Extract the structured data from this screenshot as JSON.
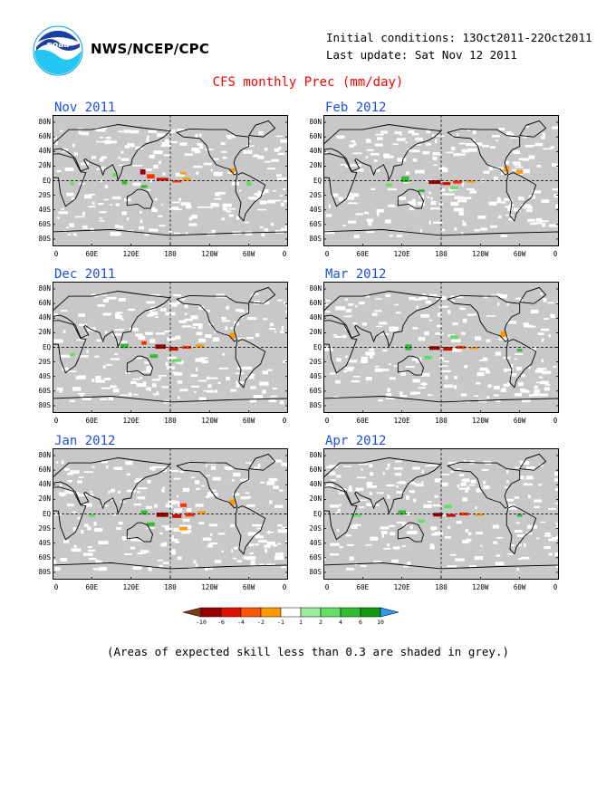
{
  "header": {
    "agency": "NWS/NCEP/CPC",
    "initial_conditions": "Initial conditions: 13Oct2011-22Oct2011",
    "last_update": "Last update: Sat Nov 12 2011",
    "main_title": "CFS monthly Prec (mm/day)",
    "logo_text": "noaa"
  },
  "panels": [
    {
      "title": "Nov 2011",
      "anomalies": [
        {
          "lon": 138,
          "lat": 12,
          "w": 8,
          "h": 7,
          "c": "#990000"
        },
        {
          "lon": 150,
          "lat": 6,
          "w": 12,
          "h": 6,
          "c": "#ff3300"
        },
        {
          "lon": 168,
          "lat": 2,
          "w": 18,
          "h": 4,
          "c": "#cc1100"
        },
        {
          "lon": 190,
          "lat": -1,
          "w": 14,
          "h": 3,
          "c": "#ff3300"
        },
        {
          "lon": 205,
          "lat": 2,
          "w": 12,
          "h": 4,
          "c": "#ff9900"
        },
        {
          "lon": 275,
          "lat": 14,
          "w": 8,
          "h": 6,
          "c": "#ff9900"
        },
        {
          "lon": 200,
          "lat": 10,
          "w": 10,
          "h": 3,
          "c": "#ff9900"
        },
        {
          "lon": 110,
          "lat": -2,
          "w": 8,
          "h": 6,
          "c": "#33bb33"
        },
        {
          "lon": 95,
          "lat": 8,
          "w": 8,
          "h": 5,
          "c": "#66dd66"
        },
        {
          "lon": 140,
          "lat": -8,
          "w": 10,
          "h": 4,
          "c": "#33bb33"
        },
        {
          "lon": 300,
          "lat": -4,
          "w": 8,
          "h": 6,
          "c": "#66dd66"
        },
        {
          "lon": 30,
          "lat": -4,
          "w": 6,
          "h": 5,
          "c": "#66dd66"
        }
      ]
    },
    {
      "title": "Feb 2012",
      "anomalies": [
        {
          "lon": 170,
          "lat": -2,
          "w": 18,
          "h": 5,
          "c": "#990000"
        },
        {
          "lon": 188,
          "lat": -4,
          "w": 12,
          "h": 4,
          "c": "#cc1100"
        },
        {
          "lon": 205,
          "lat": -2,
          "w": 14,
          "h": 4,
          "c": "#ff3300"
        },
        {
          "lon": 225,
          "lat": -1,
          "w": 12,
          "h": 3,
          "c": "#ff9900"
        },
        {
          "lon": 280,
          "lat": 16,
          "w": 8,
          "h": 8,
          "c": "#ff9900"
        },
        {
          "lon": 300,
          "lat": 12,
          "w": 10,
          "h": 5,
          "c": "#ff9900"
        },
        {
          "lon": 125,
          "lat": 2,
          "w": 12,
          "h": 8,
          "c": "#33bb33"
        },
        {
          "lon": 100,
          "lat": -6,
          "w": 10,
          "h": 4,
          "c": "#66dd66"
        },
        {
          "lon": 150,
          "lat": -14,
          "w": 10,
          "h": 4,
          "c": "#33bb33"
        },
        {
          "lon": 200,
          "lat": -10,
          "w": 12,
          "h": 4,
          "c": "#66dd66"
        }
      ]
    },
    {
      "title": "Dec 2011",
      "anomalies": [
        {
          "lon": 165,
          "lat": 1,
          "w": 16,
          "h": 6,
          "c": "#990000"
        },
        {
          "lon": 185,
          "lat": -2,
          "w": 14,
          "h": 5,
          "c": "#cc1100"
        },
        {
          "lon": 205,
          "lat": 0,
          "w": 14,
          "h": 4,
          "c": "#ff3300"
        },
        {
          "lon": 225,
          "lat": 2,
          "w": 12,
          "h": 4,
          "c": "#ff9900"
        },
        {
          "lon": 275,
          "lat": 16,
          "w": 8,
          "h": 8,
          "c": "#ff9900"
        },
        {
          "lon": 140,
          "lat": 6,
          "w": 8,
          "h": 5,
          "c": "#ff3300"
        },
        {
          "lon": 110,
          "lat": 2,
          "w": 12,
          "h": 6,
          "c": "#33bb33"
        },
        {
          "lon": 155,
          "lat": -12,
          "w": 12,
          "h": 5,
          "c": "#33bb33"
        },
        {
          "lon": 190,
          "lat": -18,
          "w": 14,
          "h": 4,
          "c": "#66dd66"
        },
        {
          "lon": 30,
          "lat": -10,
          "w": 8,
          "h": 4,
          "c": "#66dd66"
        }
      ]
    },
    {
      "title": "Mar 2012",
      "anomalies": [
        {
          "lon": 170,
          "lat": -1,
          "w": 16,
          "h": 5,
          "c": "#990000"
        },
        {
          "lon": 190,
          "lat": -2,
          "w": 14,
          "h": 5,
          "c": "#cc1100"
        },
        {
          "lon": 210,
          "lat": 0,
          "w": 14,
          "h": 4,
          "c": "#ff3300"
        },
        {
          "lon": 230,
          "lat": -1,
          "w": 14,
          "h": 3,
          "c": "#ff9900"
        },
        {
          "lon": 275,
          "lat": 18,
          "w": 8,
          "h": 8,
          "c": "#ff9900"
        },
        {
          "lon": 130,
          "lat": 0,
          "w": 10,
          "h": 8,
          "c": "#33bb33"
        },
        {
          "lon": 200,
          "lat": 14,
          "w": 12,
          "h": 5,
          "c": "#66dd66"
        },
        {
          "lon": 160,
          "lat": -14,
          "w": 12,
          "h": 5,
          "c": "#66dd66"
        },
        {
          "lon": 300,
          "lat": -4,
          "w": 8,
          "h": 4,
          "c": "#33bb33"
        }
      ]
    },
    {
      "title": "Jan 2012",
      "anomalies": [
        {
          "lon": 168,
          "lat": -1,
          "w": 18,
          "h": 6,
          "c": "#990000"
        },
        {
          "lon": 190,
          "lat": -3,
          "w": 14,
          "h": 5,
          "c": "#cc1100"
        },
        {
          "lon": 210,
          "lat": -1,
          "w": 14,
          "h": 5,
          "c": "#ff3300"
        },
        {
          "lon": 228,
          "lat": 2,
          "w": 12,
          "h": 4,
          "c": "#ff9900"
        },
        {
          "lon": 200,
          "lat": -20,
          "w": 12,
          "h": 5,
          "c": "#ff9900"
        },
        {
          "lon": 200,
          "lat": 12,
          "w": 10,
          "h": 5,
          "c": "#ff3300"
        },
        {
          "lon": 275,
          "lat": 16,
          "w": 8,
          "h": 8,
          "c": "#ff9900"
        },
        {
          "lon": 140,
          "lat": 2,
          "w": 10,
          "h": 6,
          "c": "#33bb33"
        },
        {
          "lon": 150,
          "lat": -14,
          "w": 12,
          "h": 5,
          "c": "#33bb33"
        },
        {
          "lon": 60,
          "lat": -2,
          "w": 10,
          "h": 4,
          "c": "#66dd66"
        }
      ]
    },
    {
      "title": "Apr 2012",
      "anomalies": [
        {
          "lon": 175,
          "lat": -1,
          "w": 14,
          "h": 5,
          "c": "#990000"
        },
        {
          "lon": 195,
          "lat": -2,
          "w": 14,
          "h": 4,
          "c": "#cc1100"
        },
        {
          "lon": 215,
          "lat": 0,
          "w": 14,
          "h": 4,
          "c": "#ff3300"
        },
        {
          "lon": 238,
          "lat": -1,
          "w": 14,
          "h": 3,
          "c": "#ff9900"
        },
        {
          "lon": 120,
          "lat": 2,
          "w": 12,
          "h": 6,
          "c": "#33bb33"
        },
        {
          "lon": 50,
          "lat": -2,
          "w": 16,
          "h": 4,
          "c": "#66dd66"
        },
        {
          "lon": 190,
          "lat": 10,
          "w": 12,
          "h": 5,
          "c": "#66dd66"
        },
        {
          "lon": 150,
          "lat": -10,
          "w": 10,
          "h": 4,
          "c": "#66dd66"
        },
        {
          "lon": 300,
          "lat": -2,
          "w": 8,
          "h": 4,
          "c": "#33bb33"
        }
      ]
    }
  ],
  "lat_labels": [
    "80N",
    "60N",
    "40N",
    "20N",
    "EQ",
    "20S",
    "40S",
    "60S",
    "80S"
  ],
  "lon_labels": [
    "0",
    "60E",
    "120E",
    "180",
    "120W",
    "60W",
    "0"
  ],
  "legend": {
    "labels": [
      "-10",
      "-6",
      "-4",
      "-2",
      "-1",
      "1",
      "2",
      "4",
      "6",
      "10"
    ],
    "colors": [
      "#7a3a1a",
      "#990000",
      "#dd1100",
      "#ff5500",
      "#ff9900",
      "#ffffff",
      "#99ee99",
      "#66dd66",
      "#33bb33",
      "#119911",
      "#3399ff"
    ]
  },
  "footnote": "(Areas of expected skill less than 0.3 are shaded in grey.)",
  "palette": {
    "grey_shade": "#c8c8c8",
    "title_blue": "#1f4fe0",
    "title_red": "#ff0000"
  }
}
